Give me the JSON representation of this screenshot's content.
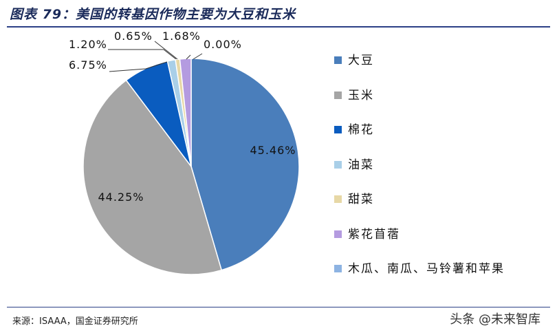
{
  "title": "图表 79：美国的转基因作物主要为大豆和玉米",
  "source": "来源：ISAAA，国金证券研究所",
  "watermark": "头条 @未来智库",
  "chart_data": {
    "type": "pie",
    "title": "",
    "slices": [
      {
        "name": "大豆",
        "value": 45.46,
        "label": "45.46%",
        "color": "#4a7ebb"
      },
      {
        "name": "玉米",
        "value": 44.25,
        "label": "44.25%",
        "color": "#a5a5a5"
      },
      {
        "name": "棉花",
        "value": 6.75,
        "label": "6.75%",
        "color": "#0a5cbf"
      },
      {
        "name": "油菜",
        "value": 1.2,
        "label": "1.20%",
        "color": "#a9cfe8"
      },
      {
        "name": "甜菜",
        "value": 0.65,
        "label": "0.65%",
        "color": "#e7d8a6"
      },
      {
        "name": "紫花苜蓿",
        "value": 1.68,
        "label": "1.68%",
        "color": "#b49be0"
      },
      {
        "name": "木瓜、南瓜、马铃薯和苹果",
        "value": 0.0,
        "label": "0.00%",
        "color": "#8db3e2"
      }
    ],
    "legend_position": "right"
  }
}
